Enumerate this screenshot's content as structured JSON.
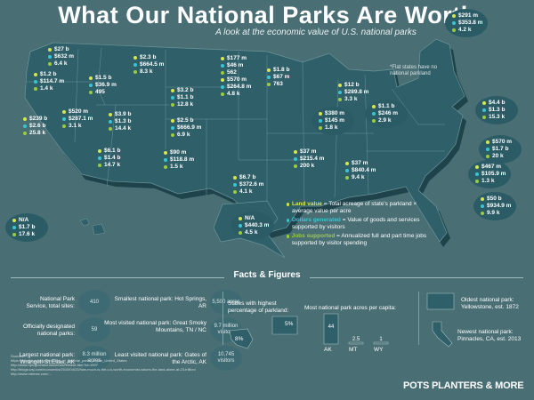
{
  "header": {
    "title": "What Our National Parks Are Worth",
    "subtitle": "A look at the economic value of U.S. national parks"
  },
  "note": "*Flat states have no national parkland",
  "states": [
    {
      "id": "wa",
      "land": "$27 b",
      "dollar": "$632 m",
      "jobs": "6.4 k"
    },
    {
      "id": "or",
      "land": "$1.2 b",
      "dollar": "$114.7 m",
      "jobs": "1.4 k"
    },
    {
      "id": "id",
      "land": "$1.5 b",
      "dollar": "$36.9 m",
      "jobs": "495"
    },
    {
      "id": "mt",
      "land": "$2.3 b",
      "dollar": "$664.5 m",
      "jobs": "8.3 k"
    },
    {
      "id": "nd",
      "land": "$177 m",
      "dollar": "$46 m",
      "jobs": "562"
    },
    {
      "id": "mn",
      "land": "$1.8 b",
      "dollar": "$67 m",
      "jobs": "763"
    },
    {
      "id": "sd",
      "land": "$570 m",
      "dollar": "$264.8 m",
      "jobs": "4.8 k"
    },
    {
      "id": "wy",
      "land": "$3.2 b",
      "dollar": "$1.1 b",
      "jobs": "12.8 k"
    },
    {
      "id": "mi",
      "land": "$12 b",
      "dollar": "$289.8 m",
      "jobs": "3.3 k"
    },
    {
      "id": "nv",
      "land": "$520 m",
      "dollar": "$287.1 m",
      "jobs": "3.1 k"
    },
    {
      "id": "ca",
      "land": "$239 b",
      "dollar": "$2.6 b",
      "jobs": "25.8 k"
    },
    {
      "id": "ut",
      "land": "$3.9 b",
      "dollar": "$1.3 b",
      "jobs": "14.4 k"
    },
    {
      "id": "co",
      "land": "$2.5 b",
      "dollar": "$666.9 m",
      "jobs": "6.9 k"
    },
    {
      "id": "ohio",
      "land": "$380 m",
      "dollar": "$145 m",
      "jobs": "1.8 k"
    },
    {
      "id": "pa",
      "land": "$1.1 b",
      "dollar": "$246 m",
      "jobs": "2.9 k"
    },
    {
      "id": "az",
      "land": "$6.1 b",
      "dollar": "$1.4 b",
      "jobs": "14.7 k"
    },
    {
      "id": "nm",
      "land": "$90 m",
      "dollar": "$118.8 m",
      "jobs": "1.5 k"
    },
    {
      "id": "tn",
      "land": "$37 m",
      "dollar": "$215.4 m",
      "jobs": "200 k"
    },
    {
      "id": "nc",
      "land": "$37 m",
      "dollar": "$840.4 m",
      "jobs": "9.4 k"
    },
    {
      "id": "tx",
      "land": "$6.7 b",
      "dollar": "$372.6 m",
      "jobs": "4.1 k"
    },
    {
      "id": "me",
      "land": "$291 m",
      "dollar": "$353.8 m",
      "jobs": "4.2 k"
    },
    {
      "id": "ma",
      "land": "$4.4 b",
      "dollar": "$1.3 b",
      "jobs": "15.3 k"
    },
    {
      "id": "md",
      "land": "$570 m",
      "dollar": "$1.7 b",
      "jobs": "20 k"
    },
    {
      "id": "va",
      "land": "$467 m",
      "dollar": "$105.9 m",
      "jobs": "1.3 k"
    },
    {
      "id": "fl",
      "land": "$50 b",
      "dollar": "$934.9 m",
      "jobs": "9.9 k"
    },
    {
      "id": "hi",
      "land": "N/A",
      "dollar": "$1.7 b",
      "jobs": "17.6 k"
    },
    {
      "id": "ak",
      "land": "N/A",
      "dollar": "$440.3 m",
      "jobs": "4.5 k"
    }
  ],
  "legend": {
    "land_label": "Land value",
    "land_text": " = Total acreage of state's parkland × average value per acre",
    "dollar_label": "Dollars generated",
    "dollar_text": " = Value of goods and services supported by visitors",
    "jobs_label": "Jobs supported",
    "jobs_text": " = Annualized full and part time jobs supported by visitor spending"
  },
  "facts": {
    "title": "Facts & Figures",
    "total_sites_label": "National Park Service, total sites:",
    "total_sites_value": "410",
    "designated_label": "Officially designated national parks:",
    "designated_value": "59",
    "largest_label": "Largest national park: Wrangell-St.Elias, AK",
    "largest_value": "8.3 million acres",
    "smallest_label": "Smallest national park: Hot Springs, AR",
    "smallest_value": "5,500 acres",
    "most_visited_label": "Most visited national park: Great Smoky Mountains, TN / NC",
    "most_visited_value": "9.7 million visitors",
    "least_visited_label": "Least visited national park: Gates of the Arctic, AK",
    "least_visited_value": "10,745 visitors",
    "highest_pct_label": "States with highest percentage of parkland:",
    "pct_ak": "8%",
    "pct_wy": "5%",
    "per_capita_label": "Most national park acres per capita:",
    "per_capita_values": [
      "44",
      "2.5",
      "1"
    ],
    "per_capita_states": [
      "AK",
      "MT",
      "WY"
    ],
    "oldest_label": "Oldest national park: Yellowstone, est. 1872",
    "newest_label": "Newest national park: Pinnacles, CA, est. 2013"
  },
  "sources": [
    "Sources:",
    "https://en.wikipedia.org/wiki/List_of_national_parks_of_the_United_States",
    "http://www.nps.gov/aboutus/news/release.htm?id=1597",
    "http://blogs.wsj.com/economics/2015/04/23/how-much-is-the-u-s-worth-economist-values-the-land-alone-at-23-trillion/",
    "http://www.nrtimes.com/..."
  ],
  "brand": "POTS PLANTERS & MORE",
  "colors": {
    "land": "#d8e64a",
    "dollar": "#37c6d2",
    "jobs": "#9ccc3c",
    "bg": "#496e74",
    "map": "#2f5f69"
  }
}
